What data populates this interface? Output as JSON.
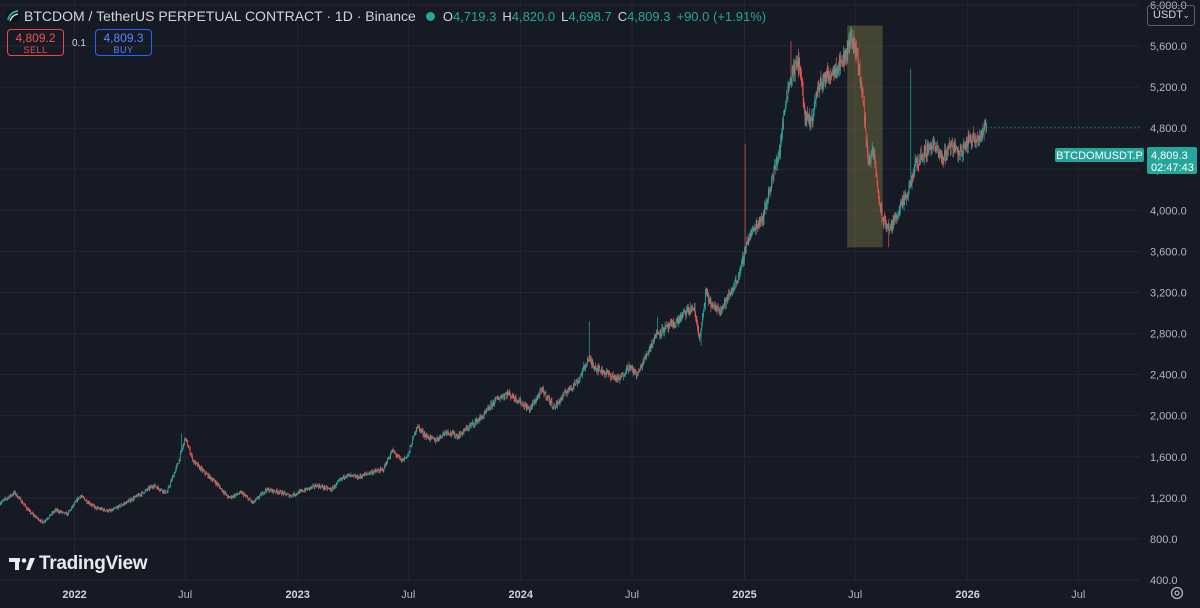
{
  "header": {
    "symbol_title": "BTCDOM / TetherUS PERPETUAL CONTRACT · 1D · Binance",
    "open_key": "O",
    "open": "4,719.3",
    "high_key": "H",
    "high": "4,820.0",
    "low_key": "L",
    "low": "4,698.7",
    "close_key": "C",
    "close": "4,809.3",
    "change": "+90.0 (+1.91%)"
  },
  "trade": {
    "sell_price": "4,809.2",
    "sell_label": "SELL",
    "buy_price": "4,809.3",
    "buy_label": "BUY",
    "quantity": "0.1"
  },
  "currency": {
    "label": "USDT"
  },
  "price_tag": {
    "symbol": "BTCDOMUSDT.P",
    "price": "4,809.3",
    "countdown": "02:47:43"
  },
  "branding": {
    "logo_text": "TradingView"
  },
  "colors": {
    "up": "#26a69a",
    "down": "#ef5350",
    "background": "#161a25",
    "grid": "#242733",
    "highlight": "#6b6840"
  },
  "icons": {
    "symbol": "btc-logo-icon",
    "settings": "gear-icon",
    "dropdown": "chevron-down-icon"
  },
  "chart_data": {
    "type": "candlestick",
    "interval": "1D",
    "y_ticks": [
      400,
      800,
      1200,
      1600,
      2000,
      2400,
      2800,
      3200,
      3600,
      4000,
      4400,
      4800,
      5200,
      5600,
      6000
    ],
    "y_tick_labels": [
      "400.0",
      "800.0",
      "1,200.0",
      "1,600.0",
      "2,000.0",
      "2,400.0",
      "2,800.0",
      "3,200.0",
      "3,600.0",
      "4,000.0",
      "4,400.0",
      "4,800.0",
      "5,200.0",
      "5,600.0",
      "6,000.0"
    ],
    "ylim": [
      400,
      6000
    ],
    "xlim": [
      "2021-09-01",
      "2026-10-10"
    ],
    "x_ticks": [
      {
        "date": "2022-01-01",
        "label": "2022",
        "bold": true
      },
      {
        "date": "2022-07-01",
        "label": "Jul",
        "bold": false
      },
      {
        "date": "2023-01-01",
        "label": "2023",
        "bold": true
      },
      {
        "date": "2023-07-01",
        "label": "Jul",
        "bold": false
      },
      {
        "date": "2024-01-01",
        "label": "2024",
        "bold": true
      },
      {
        "date": "2024-07-01",
        "label": "Jul",
        "bold": false
      },
      {
        "date": "2025-01-01",
        "label": "2025",
        "bold": true
      },
      {
        "date": "2025-07-01",
        "label": "Jul",
        "bold": false
      },
      {
        "date": "2026-01-01",
        "label": "2026",
        "bold": true
      },
      {
        "date": "2026-07-01",
        "label": "Jul",
        "bold": false
      }
    ],
    "grid": true,
    "last_price": 4809.3,
    "highlight": {
      "start": "2025-06-18",
      "end": "2025-08-15",
      "low": 3640,
      "high": 5800
    },
    "price_path": [
      [
        "2021-09-01",
        1150
      ],
      [
        "2021-09-25",
        1250
      ],
      [
        "2021-10-20",
        1060
      ],
      [
        "2021-11-10",
        960
      ],
      [
        "2021-12-01",
        1080
      ],
      [
        "2021-12-20",
        1040
      ],
      [
        "2022-01-10",
        1220
      ],
      [
        "2022-02-05",
        1100
      ],
      [
        "2022-03-01",
        1070
      ],
      [
        "2022-03-25",
        1150
      ],
      [
        "2022-04-20",
        1240
      ],
      [
        "2022-05-10",
        1320
      ],
      [
        "2022-06-01",
        1250
      ],
      [
        "2022-06-20",
        1550
      ],
      [
        "2022-07-01",
        1780
      ],
      [
        "2022-07-15",
        1550
      ],
      [
        "2022-08-01",
        1450
      ],
      [
        "2022-08-20",
        1350
      ],
      [
        "2022-09-10",
        1200
      ],
      [
        "2022-10-01",
        1250
      ],
      [
        "2022-10-20",
        1150
      ],
      [
        "2022-11-10",
        1280
      ],
      [
        "2022-12-01",
        1260
      ],
      [
        "2022-12-20",
        1220
      ],
      [
        "2023-01-10",
        1270
      ],
      [
        "2023-02-01",
        1320
      ],
      [
        "2023-02-25",
        1280
      ],
      [
        "2023-03-20",
        1420
      ],
      [
        "2023-04-10",
        1400
      ],
      [
        "2023-05-01",
        1450
      ],
      [
        "2023-05-20",
        1470
      ],
      [
        "2023-06-05",
        1660
      ],
      [
        "2023-06-20",
        1560
      ],
      [
        "2023-07-01",
        1620
      ],
      [
        "2023-07-15",
        1900
      ],
      [
        "2023-07-30",
        1800
      ],
      [
        "2023-08-15",
        1760
      ],
      [
        "2023-09-01",
        1850
      ],
      [
        "2023-09-20",
        1800
      ],
      [
        "2023-10-10",
        1900
      ],
      [
        "2023-11-01",
        2000
      ],
      [
        "2023-11-20",
        2150
      ],
      [
        "2023-12-10",
        2220
      ],
      [
        "2023-12-28",
        2150
      ],
      [
        "2024-01-15",
        2060
      ],
      [
        "2024-02-05",
        2250
      ],
      [
        "2024-02-25",
        2080
      ],
      [
        "2024-03-15",
        2230
      ],
      [
        "2024-04-05",
        2350
      ],
      [
        "2024-04-20",
        2550
      ],
      [
        "2024-05-05",
        2460
      ],
      [
        "2024-05-25",
        2400
      ],
      [
        "2024-06-10",
        2350
      ],
      [
        "2024-06-25",
        2480
      ],
      [
        "2024-07-10",
        2400
      ],
      [
        "2024-07-25",
        2600
      ],
      [
        "2024-08-10",
        2800
      ],
      [
        "2024-08-25",
        2850
      ],
      [
        "2024-09-10",
        2900
      ],
      [
        "2024-09-25",
        3000
      ],
      [
        "2024-10-10",
        3050
      ],
      [
        "2024-10-20",
        2750
      ],
      [
        "2024-10-30",
        3200
      ],
      [
        "2024-11-10",
        3050
      ],
      [
        "2024-11-25",
        3050
      ],
      [
        "2024-12-10",
        3200
      ],
      [
        "2024-12-25",
        3400
      ],
      [
        "2025-01-05",
        3700
      ],
      [
        "2025-01-20",
        3850
      ],
      [
        "2025-02-01",
        3950
      ],
      [
        "2025-02-15",
        4300
      ],
      [
        "2025-02-28",
        4600
      ],
      [
        "2025-03-10",
        5100
      ],
      [
        "2025-03-20",
        5350
      ],
      [
        "2025-04-01",
        5450
      ],
      [
        "2025-04-10",
        4900
      ],
      [
        "2025-04-20",
        4850
      ],
      [
        "2025-05-01",
        5200
      ],
      [
        "2025-05-15",
        5300
      ],
      [
        "2025-06-01",
        5400
      ],
      [
        "2025-06-15",
        5500
      ],
      [
        "2025-06-25",
        5700
      ],
      [
        "2025-07-05",
        5500
      ],
      [
        "2025-07-15",
        5000
      ],
      [
        "2025-07-22",
        4500
      ],
      [
        "2025-08-01",
        4550
      ],
      [
        "2025-08-08",
        4150
      ],
      [
        "2025-08-15",
        3900
      ],
      [
        "2025-08-28",
        3820
      ],
      [
        "2025-09-10",
        4000
      ],
      [
        "2025-09-25",
        4150
      ],
      [
        "2025-10-08",
        4450
      ],
      [
        "2025-10-20",
        4550
      ],
      [
        "2025-11-05",
        4650
      ],
      [
        "2025-11-20",
        4500
      ],
      [
        "2025-12-05",
        4650
      ],
      [
        "2025-12-20",
        4550
      ],
      [
        "2026-01-05",
        4700
      ],
      [
        "2026-01-20",
        4720
      ],
      [
        "2026-02-01",
        4809.3
      ]
    ],
    "spikes": [
      [
        "2022-06-25",
        1830,
        "high"
      ],
      [
        "2024-04-22",
        2920,
        "high"
      ],
      [
        "2024-08-12",
        2960,
        "high"
      ],
      [
        "2024-10-22",
        2680,
        "low"
      ],
      [
        "2025-01-02",
        4650,
        "high"
      ],
      [
        "2025-03-18",
        5650,
        "high"
      ],
      [
        "2025-06-24",
        5790,
        "high"
      ],
      [
        "2025-09-30",
        5380,
        "high"
      ],
      [
        "2025-08-25",
        3640,
        "low"
      ]
    ]
  }
}
